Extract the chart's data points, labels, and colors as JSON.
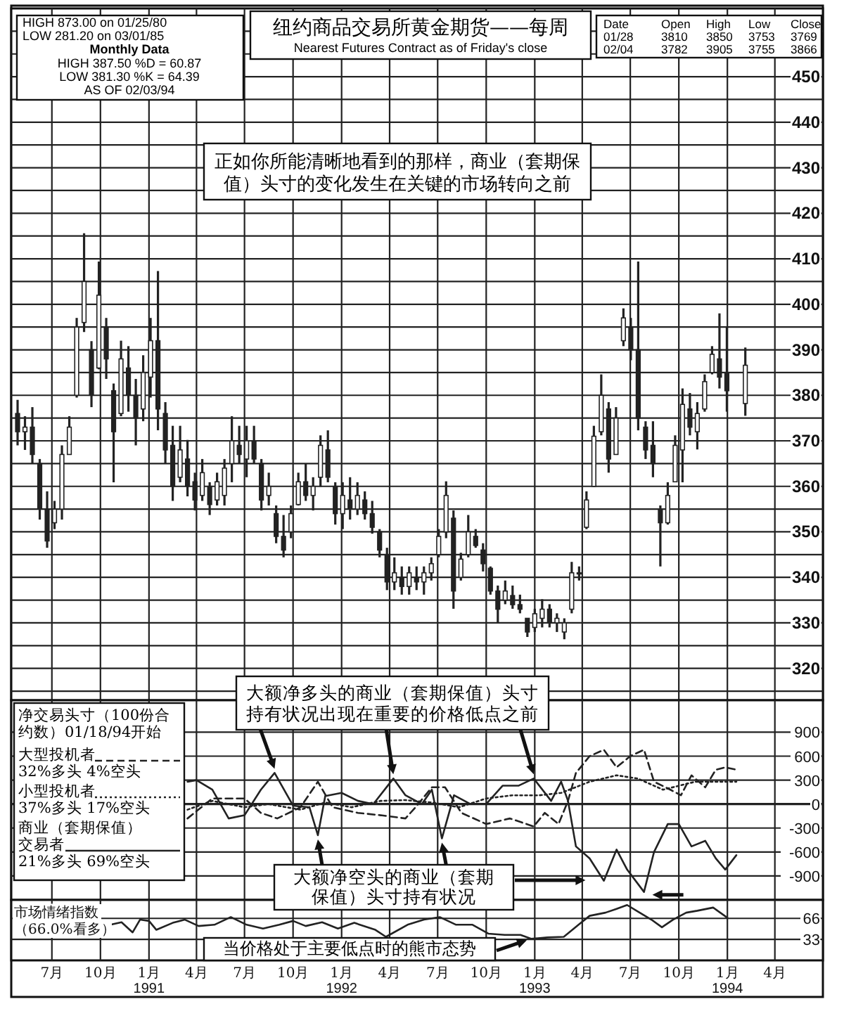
{
  "chart_data": [
    {
      "type": "candlestick",
      "title": "纽约商品交易所黄金期货——每周",
      "subtitle": "Nearest Futures Contract as of Friday's close",
      "color": "#222222",
      "grid": true,
      "tick_labels": "y",
      "xlim": [
        "1990-04-15",
        "1994-07-01"
      ],
      "xticks": [
        {
          "value": "1990-07-01",
          "label": null
        },
        {
          "value": "1990-10-01",
          "label": null
        },
        {
          "value": "1991-01-01",
          "label": null
        },
        {
          "value": "1991-04-01",
          "label": null
        },
        {
          "value": "1991-07-01",
          "label": null
        },
        {
          "value": "1991-10-01",
          "label": null
        },
        {
          "value": "1992-01-01",
          "label": null
        },
        {
          "value": "1992-04-01",
          "label": null
        },
        {
          "value": "1992-07-01",
          "label": null
        },
        {
          "value": "1992-10-01",
          "label": null
        },
        {
          "value": "1993-01-01",
          "label": null
        },
        {
          "value": "1993-04-01",
          "label": null
        },
        {
          "value": "1993-07-01",
          "label": null
        },
        {
          "value": "1993-10-01",
          "label": null
        },
        {
          "value": "1994-01-01",
          "label": null
        },
        {
          "value": "1994-04-01",
          "label": null
        }
      ],
      "ylim": [
        313,
        465
      ],
      "yticks": [
        {
          "value": 315,
          "label": null
        },
        320,
        {
          "value": 325,
          "label": null
        },
        330,
        {
          "value": 335,
          "label": null
        },
        340,
        {
          "value": 345,
          "label": null
        },
        350,
        {
          "value": 355,
          "label": null
        },
        360,
        {
          "value": 365,
          "label": null
        },
        370,
        {
          "value": 375,
          "label": null
        },
        380,
        {
          "value": 385,
          "label": null
        },
        390,
        {
          "value": 395,
          "label": null
        },
        400,
        {
          "value": 405,
          "label": null
        },
        410,
        {
          "value": 415,
          "label": null
        },
        420,
        {
          "value": 425,
          "label": null
        },
        430,
        {
          "value": 435,
          "label": null
        },
        440,
        {
          "value": 445,
          "label": null
        },
        450,
        {
          "value": 455,
          "label": null
        },
        {
          "value": 460,
          "label": null
        }
      ],
      "annotations": [
        "HIGH 873.00 on 01/25/80",
        "LOW 281.20 on 03/01/85",
        "Monthly Data",
        "HIGH 387.50   %D = 60.87",
        "LOW 381.30   %K = 64.39",
        "AS OF 02/03/94",
        "Date Open High Low Close",
        "01/28 3810 3850 3753 3769",
        "02/04 3782 3905 3755 3866",
        "正如你所能清晰地看到的那样，商业（套期保值）头寸的变化发生在关键的市场转向之前"
      ],
      "x": [
        "1990-04-27",
        "1990-05-11",
        "1990-05-25",
        "1990-06-08",
        "1990-06-22",
        "1990-07-06",
        "1990-07-20",
        "1990-08-03",
        "1990-08-17",
        "1990-08-31",
        "1990-09-14",
        "1990-09-28",
        "1990-10-12",
        "1990-10-26",
        "1990-11-09",
        "1990-11-23",
        "1990-12-07",
        "1990-12-21",
        "1991-01-04",
        "1991-01-18",
        "1991-02-01",
        "1991-02-15",
        "1991-03-01",
        "1991-03-15",
        "1991-03-29",
        "1991-04-12",
        "1991-04-26",
        "1991-05-10",
        "1991-05-24",
        "1991-06-07",
        "1991-06-21",
        "1991-07-05",
        "1991-07-19",
        "1991-08-02",
        "1991-08-16",
        "1991-08-30",
        "1991-09-13",
        "1991-09-27",
        "1991-10-11",
        "1991-10-25",
        "1991-11-08",
        "1991-11-22",
        "1991-12-06",
        "1991-12-20",
        "1992-01-03",
        "1992-01-17",
        "1992-01-31",
        "1992-02-14",
        "1992-02-28",
        "1992-03-13",
        "1992-03-27",
        "1992-04-10",
        "1992-04-24",
        "1992-05-08",
        "1992-05-22",
        "1992-06-05",
        "1992-06-19",
        "1992-07-03",
        "1992-07-17",
        "1992-07-31",
        "1992-08-14",
        "1992-08-28",
        "1992-09-11",
        "1992-09-25",
        "1992-10-09",
        "1992-10-23",
        "1992-11-06",
        "1992-11-20",
        "1992-12-04",
        "1992-12-18",
        "1993-01-01",
        "1993-01-15",
        "1993-01-29",
        "1993-02-12",
        "1993-02-26",
        "1993-03-12",
        "1993-03-26",
        "1993-04-09",
        "1993-04-23",
        "1993-05-07",
        "1993-05-21",
        "1993-06-04",
        "1993-06-18",
        "1993-07-02",
        "1993-07-16",
        "1993-07-30",
        "1993-08-13",
        "1993-08-27",
        "1993-09-10",
        "1993-09-24",
        "1993-10-08",
        "1993-10-22",
        "1993-11-05",
        "1993-11-19",
        "1993-12-03",
        "1993-12-17",
        "1993-12-31",
        "1994-02-04"
      ],
      "ohlc": [
        [
          376,
          379,
          369,
          372
        ],
        [
          372,
          375.4,
          368,
          373
        ],
        [
          373,
          377.4,
          365,
          367
        ],
        [
          365,
          366,
          352.7,
          355
        ],
        [
          355,
          358.9,
          346.5,
          348
        ],
        [
          352,
          356.8,
          350.6,
          355
        ],
        [
          355,
          369,
          352.7,
          367
        ],
        [
          367,
          375.4,
          367,
          373
        ],
        [
          380,
          397,
          379.5,
          395
        ],
        [
          396,
          415.6,
          393.9,
          405
        ],
        [
          390,
          391.9,
          377.4,
          380
        ],
        [
          386,
          409.4,
          385.7,
          402
        ],
        [
          395,
          397,
          383.6,
          388
        ],
        [
          381,
          382.6,
          360.9,
          372
        ],
        [
          376,
          392,
          375.4,
          388
        ],
        [
          386,
          390.8,
          376.4,
          380
        ],
        [
          380,
          383.6,
          369,
          375
        ],
        [
          377,
          388.8,
          374.3,
          385
        ],
        [
          384,
          397,
          379.5,
          392
        ],
        [
          392,
          407.3,
          372.3,
          377
        ],
        [
          376,
          378.5,
          365,
          368
        ],
        [
          369,
          373.3,
          356.8,
          360
        ],
        [
          362,
          373.3,
          360.9,
          368
        ],
        [
          366,
          370.2,
          357.8,
          360
        ],
        [
          361,
          363,
          354.7,
          357
        ],
        [
          358,
          366,
          356.8,
          363
        ],
        [
          360,
          360.9,
          353.7,
          356
        ],
        [
          357,
          363,
          355.8,
          361
        ],
        [
          358,
          366,
          355.8,
          364
        ],
        [
          365,
          375.4,
          360.9,
          370
        ],
        [
          369,
          373.3,
          365,
          367
        ],
        [
          366,
          373.3,
          362,
          370
        ],
        [
          370,
          373.3,
          365,
          366
        ],
        [
          365,
          366,
          354.7,
          357
        ],
        [
          358,
          363,
          355.8,
          360
        ],
        [
          354,
          355.8,
          347.5,
          349
        ],
        [
          349,
          353.7,
          344.4,
          346
        ],
        [
          350,
          355.8,
          348.6,
          354
        ],
        [
          356,
          363,
          355.8,
          361
        ],
        [
          361,
          365,
          356.8,
          358
        ],
        [
          358,
          362,
          354.7,
          360
        ],
        [
          362,
          371.2,
          359.9,
          369
        ],
        [
          368,
          372.3,
          360.9,
          362
        ],
        [
          360,
          360.9,
          351.6,
          354
        ],
        [
          354,
          360.9,
          350.6,
          358
        ],
        [
          357,
          362,
          352.7,
          355
        ],
        [
          355,
          360.9,
          353.7,
          358
        ],
        [
          357,
          358.9,
          352.7,
          354
        ],
        [
          354,
          356.8,
          349.6,
          351
        ],
        [
          350,
          350.6,
          344.4,
          346
        ],
        [
          345,
          346.5,
          337.2,
          339
        ],
        [
          339,
          344.4,
          337.2,
          341
        ],
        [
          340,
          342.4,
          336.2,
          338
        ],
        [
          338,
          342.4,
          336.2,
          341
        ],
        [
          340,
          342.4,
          337.2,
          339
        ],
        [
          339,
          342.4,
          336.2,
          341
        ],
        [
          341,
          344.4,
          339.3,
          343
        ],
        [
          345,
          350.6,
          344.4,
          349
        ],
        [
          350,
          361.1,
          348.6,
          358
        ],
        [
          353,
          354.7,
          333.1,
          337
        ],
        [
          340,
          345.4,
          339.3,
          344
        ],
        [
          345,
          353.7,
          344.4,
          350
        ],
        [
          349,
          350.6,
          346.5,
          347
        ],
        [
          346,
          347.5,
          341.3,
          343
        ],
        [
          342,
          342.4,
          336.2,
          337
        ],
        [
          337,
          338.2,
          330,
          333
        ],
        [
          335,
          339.3,
          334.1,
          337
        ],
        [
          336,
          338.2,
          333.1,
          334
        ],
        [
          334,
          336.2,
          332.1,
          333
        ],
        [
          331,
          331,
          326.9,
          328
        ],
        [
          329,
          333.1,
          328,
          332
        ],
        [
          331,
          335.2,
          329,
          333
        ],
        [
          333,
          334.1,
          329,
          330
        ],
        [
          330,
          332.1,
          328,
          331
        ],
        [
          328,
          331,
          326.4,
          330
        ],
        [
          333,
          343.4,
          332.1,
          341
        ],
        [
          341,
          342.4,
          339.3,
          341
        ],
        [
          351,
          358.9,
          350.6,
          357
        ],
        [
          360,
          373.3,
          359.9,
          371
        ],
        [
          372,
          384.6,
          371.2,
          380
        ],
        [
          377,
          378.5,
          363,
          366
        ],
        [
          367,
          377.4,
          367,
          375
        ],
        [
          392,
          399.1,
          390.8,
          397
        ],
        [
          395,
          397,
          387.7,
          390
        ],
        [
          390,
          409.4,
          372.3,
          375
        ],
        [
          373,
          374.3,
          366,
          368
        ],
        [
          369,
          374.3,
          362,
          365
        ],
        [
          355,
          355.8,
          342.4,
          352
        ],
        [
          352,
          360.9,
          351.6,
          358
        ],
        [
          361,
          371.2,
          360.9,
          369
        ],
        [
          368,
          381.5,
          360.9,
          378
        ],
        [
          377,
          380.5,
          371.2,
          373
        ],
        [
          372,
          378.5,
          368.1,
          376
        ],
        [
          377,
          384.6,
          376.4,
          383
        ],
        [
          385,
          390.8,
          384.6,
          389
        ],
        [
          388,
          398,
          381.5,
          384
        ],
        [
          385,
          395,
          376.4,
          381
        ],
        [
          378.2,
          390.5,
          375.5,
          386.6
        ]
      ]
    },
    {
      "type": "line",
      "legend_title": "净交易头寸（100份合约数）01/18/94开始",
      "legend": "left",
      "grid": true,
      "tick_labels": "y",
      "xlim": [
        "1990-04-15",
        "1994-07-01"
      ],
      "xticks": [
        {
          "value": "1990-07-01",
          "label": null
        },
        {
          "value": "1990-10-01",
          "label": null
        },
        {
          "value": "1991-01-01",
          "label": null
        },
        {
          "value": "1991-04-01",
          "label": null
        },
        {
          "value": "1991-07-01",
          "label": null
        },
        {
          "value": "1991-10-01",
          "label": null
        },
        {
          "value": "1992-01-01",
          "label": null
        },
        {
          "value": "1992-04-01",
          "label": null
        },
        {
          "value": "1992-07-01",
          "label": null
        },
        {
          "value": "1992-10-01",
          "label": null
        },
        {
          "value": "1993-01-01",
          "label": null
        },
        {
          "value": "1993-04-01",
          "label": null
        },
        {
          "value": "1993-07-01",
          "label": null
        },
        {
          "value": "1993-10-01",
          "label": null
        },
        {
          "value": "1994-01-01",
          "label": null
        },
        {
          "value": "1994-04-01",
          "label": null
        }
      ],
      "ylim": [
        -1200,
        1300
      ],
      "yticks": [
        -900,
        -600,
        -300,
        0,
        300,
        600,
        900
      ],
      "annotations": [
        "32%多头 4%空头",
        "37%多头 17%空头",
        "21%多头 69%空头",
        "大额净多头的商业（套期保值）头寸持有状况出现在重要的价格低点之前",
        "大额净空头的商业（套期保值）头寸持有状况"
      ],
      "series": [
        {
          "name": "大型投机者",
          "color": "#222222",
          "line_style": "dashed",
          "x": [
            "1991-03-15",
            "1991-05-01",
            "1991-07-01",
            "1991-08-01",
            "1991-09-01",
            "1991-10-15",
            "1991-11-17",
            "1991-12-15",
            "1992-02-01",
            "1992-03-15",
            "1992-05-01",
            "1992-05-20",
            "1992-06-20",
            "1992-07-15",
            "1992-08-15",
            "1992-10-01",
            "1992-11-15",
            "1992-12-30",
            "1993-01-20",
            "1993-02-15",
            "1993-03-05",
            "1993-03-20",
            "1993-04-15",
            "1993-05-12",
            "1993-06-05",
            "1993-07-01",
            "1993-07-27",
            "1993-08-15",
            "1993-09-15",
            "1993-10-05",
            "1993-10-25",
            "1993-11-20",
            "1993-12-10",
            "1993-12-28",
            "1994-01-18"
          ],
          "values": [
            -180,
            70,
            70,
            -110,
            -180,
            -40,
            280,
            -40,
            -110,
            -140,
            -180,
            -40,
            210,
            210,
            -110,
            -250,
            -180,
            -280,
            -110,
            -250,
            40,
            390,
            600,
            680,
            460,
            600,
            680,
            280,
            180,
            110,
            360,
            210,
            430,
            460,
            430
          ]
        },
        {
          "name": "小型投机者",
          "color": "#222222",
          "line_style": "dotted",
          "x": [
            "1991-03-15",
            "1991-05-01",
            "1991-07-01",
            "1991-08-15",
            "1991-10-15",
            "1991-12-01",
            "1992-01-20",
            "1992-03-15",
            "1992-05-01",
            "1992-06-20",
            "1992-08-10",
            "1992-10-01",
            "1992-11-20",
            "1993-01-10",
            "1993-02-20",
            "1993-04-15",
            "1993-06-05",
            "1993-07-15",
            "1993-09-01",
            "1993-11-01",
            "1994-01-18"
          ],
          "values": [
            -70,
            40,
            -40,
            0,
            -70,
            20,
            -40,
            40,
            50,
            20,
            -40,
            70,
            110,
            110,
            140,
            280,
            360,
            320,
            180,
            280,
            280
          ]
        },
        {
          "name": "商业（套期保值）交易者",
          "color": "#222222",
          "line_style": "solid",
          "x": [
            "1991-03-15",
            "1991-04-01",
            "1991-05-01",
            "1991-06-01",
            "1991-07-01",
            "1991-08-01",
            "1991-08-27",
            "1991-10-01",
            "1991-11-01",
            "1991-11-17",
            "1991-12-01",
            "1992-01-01",
            "1992-02-01",
            "1992-03-01",
            "1992-04-08",
            "1992-05-01",
            "1992-06-01",
            "1992-06-20",
            "1992-07-09",
            "1992-08-01",
            "1992-09-01",
            "1992-10-01",
            "1992-11-01",
            "1992-12-01",
            "1992-12-30",
            "1993-02-01",
            "1993-02-20",
            "1993-03-05",
            "1993-03-20",
            "1993-04-15",
            "1993-05-12",
            "1993-06-05",
            "1993-06-25",
            "1993-07-27",
            "1993-08-15",
            "1993-09-10",
            "1993-10-01",
            "1993-10-25",
            "1993-11-20",
            "1993-12-10",
            "1993-12-28",
            "1994-01-18"
          ],
          "values": [
            280,
            300,
            180,
            -180,
            -140,
            180,
            390,
            -20,
            -40,
            -390,
            100,
            140,
            40,
            0,
            320,
            110,
            0,
            180,
            -430,
            110,
            0,
            0,
            230,
            230,
            320,
            40,
            280,
            40,
            -530,
            -680,
            -960,
            -570,
            -820,
            -1100,
            -600,
            -250,
            -250,
            -530,
            -460,
            -680,
            -820,
            -640
          ]
        }
      ]
    },
    {
      "type": "line",
      "title": "市场情绪指数（66.0%看多）",
      "grid": true,
      "xlim": [
        "1990-04-15",
        "1994-07-01"
      ],
      "xticks": [
        {
          "value": "1990-07-01",
          "label": "7月"
        },
        {
          "value": "1990-10-01",
          "label": "10月"
        },
        {
          "value": "1991-01-01",
          "label": "1月\n1991"
        },
        {
          "value": "1991-04-01",
          "label": "4月"
        },
        {
          "value": "1991-07-01",
          "label": "7月"
        },
        {
          "value": "1991-10-01",
          "label": "10月"
        },
        {
          "value": "1992-01-01",
          "label": "1月\n1992"
        },
        {
          "value": "1992-04-01",
          "label": "4月"
        },
        {
          "value": "1992-07-01",
          "label": "7月"
        },
        {
          "value": "1992-10-01",
          "label": "10月"
        },
        {
          "value": "1993-01-01",
          "label": "1月\n1993"
        },
        {
          "value": "1993-04-01",
          "label": "4月"
        },
        {
          "value": "1993-07-01",
          "label": "7月"
        },
        {
          "value": "1993-10-01",
          "label": "10月"
        },
        {
          "value": "1994-01-01",
          "label": "1月\n1994"
        },
        {
          "value": "1994-04-01",
          "label": "4月"
        }
      ],
      "ylim": [
        0,
        95
      ],
      "yticks": [
        33,
        66
      ],
      "annotations": [
        "当价格处于主要低点时的熊市态势"
      ],
      "series": [
        {
          "color": "#222222",
          "x": [
            "1990-10-20",
            "1990-11-10",
            "1990-12-01",
            "1990-12-15",
            "1991-01-01",
            "1991-01-15",
            "1991-02-15",
            "1991-03-10",
            "1991-04-05",
            "1991-05-05",
            "1991-06-05",
            "1991-07-05",
            "1991-08-05",
            "1991-09-05",
            "1991-10-01",
            "1991-10-25",
            "1991-11-25",
            "1991-12-25",
            "1992-01-25",
            "1992-03-05",
            "1992-03-25",
            "1992-05-05",
            "1992-06-05",
            "1992-07-05",
            "1992-08-05",
            "1992-09-05",
            "1992-10-05",
            "1992-11-05",
            "1992-12-05",
            "1992-12-25",
            "1993-01-25",
            "1993-02-25",
            "1993-03-25",
            "1993-04-15",
            "1993-05-15",
            "1993-06-05",
            "1993-06-25",
            "1993-07-15",
            "1993-08-10",
            "1993-08-30",
            "1993-09-20",
            "1993-10-15",
            "1993-11-05",
            "1993-12-05",
            "1994-01-01"
          ],
          "values": [
            56,
            60,
            44,
            64,
            62,
            48,
            59,
            64,
            54,
            56,
            68,
            56,
            50,
            56,
            62,
            54,
            60,
            50,
            59,
            48,
            37,
            56,
            64,
            68,
            56,
            56,
            42,
            40,
            40,
            34,
            36,
            37,
            56,
            70,
            75,
            81,
            87,
            77,
            64,
            52,
            64,
            75,
            78,
            83,
            67
          ]
        }
      ]
    }
  ]
}
